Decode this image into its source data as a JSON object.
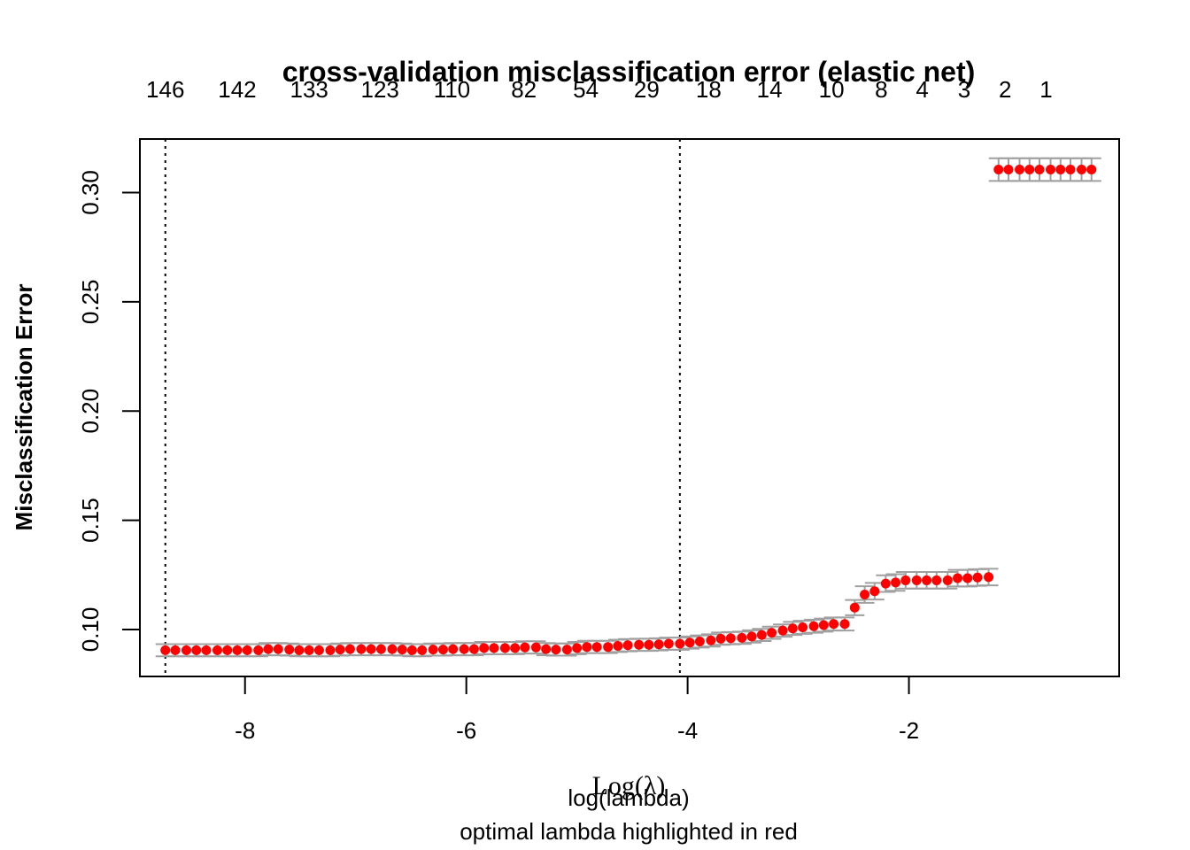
{
  "chart_data": {
    "type": "scatter",
    "title": "cross-validation misclassification error (elastic net)",
    "xlabel": "Log(λ)",
    "xlabel_overlay": "log(lambda)",
    "subtitle": "optimal lambda highlighted in red",
    "ylabel": "Misclassification Error",
    "xlim": [
      -8.95,
      -0.1
    ],
    "ylim": [
      0.0785,
      0.3245
    ],
    "x_ticks": [
      -8,
      -6,
      -4,
      -2
    ],
    "x_tick_labels": [
      "-8",
      "-6",
      "-4",
      "-2"
    ],
    "y_ticks": [
      0.1,
      0.15,
      0.2,
      0.25,
      0.3
    ],
    "y_tick_labels": [
      "0.10",
      "0.15",
      "0.20",
      "0.25",
      "0.30"
    ],
    "top_axis": {
      "positions": [
        -8.72,
        -8.07,
        -7.42,
        -6.78,
        -6.13,
        -5.48,
        -4.92,
        -4.37,
        -3.81,
        -3.26,
        -2.7,
        -2.25,
        -1.88,
        -1.5,
        -1.13,
        -0.76
      ],
      "labels": [
        "146",
        "142",
        "133",
        "123",
        "110",
        "82",
        "54",
        "29",
        "18",
        "14",
        "10",
        "8",
        "4",
        "3",
        "2",
        "1"
      ]
    },
    "vlines": [
      -8.72,
      -4.07
    ],
    "grid": false,
    "point_color": "#ff0000",
    "errorbar_color": "#a0a0a0",
    "series": [
      {
        "x": [
          -8.72,
          -8.63,
          -8.53,
          -8.44,
          -8.35,
          -8.25,
          -8.16,
          -8.07,
          -7.98,
          -7.88,
          -7.79,
          -7.7,
          -7.6,
          -7.51,
          -7.42,
          -7.33,
          -7.23,
          -7.14,
          -7.05,
          -6.95,
          -6.86,
          -6.77,
          -6.67,
          -6.58,
          -6.49,
          -6.4,
          -6.3,
          -6.21,
          -6.12,
          -6.02,
          -5.93,
          -5.84,
          -5.75,
          -5.65,
          -5.56,
          -5.47,
          -5.37,
          -5.28,
          -5.19,
          -5.09,
          -5.0,
          -4.91,
          -4.82,
          -4.72,
          -4.63,
          -4.54,
          -4.44,
          -4.35,
          -4.26,
          -4.17,
          -4.07,
          -3.98,
          -3.89,
          -3.79,
          -3.7,
          -3.61,
          -3.51,
          -3.42,
          -3.33,
          -3.24,
          -3.14,
          -3.05,
          -2.96,
          -2.86,
          -2.77,
          -2.68,
          -2.58,
          -2.49,
          -2.4,
          -2.31,
          -2.21,
          -2.12,
          -2.03,
          -1.93,
          -1.84,
          -1.75,
          -1.65,
          -1.56,
          -1.47,
          -1.38,
          -1.28,
          -1.19,
          -1.1,
          -1.0,
          -0.91,
          -0.82,
          -0.72,
          -0.63,
          -0.54,
          -0.44,
          -0.35
        ],
        "y": [
          0.0905,
          0.0905,
          0.0905,
          0.0905,
          0.0905,
          0.0905,
          0.0905,
          0.0905,
          0.0905,
          0.0905,
          0.091,
          0.091,
          0.0908,
          0.0905,
          0.0905,
          0.0905,
          0.0905,
          0.0908,
          0.091,
          0.091,
          0.091,
          0.091,
          0.091,
          0.0908,
          0.0905,
          0.0905,
          0.0908,
          0.0908,
          0.091,
          0.091,
          0.091,
          0.0915,
          0.0915,
          0.0915,
          0.0915,
          0.0918,
          0.0918,
          0.091,
          0.0908,
          0.0908,
          0.0915,
          0.092,
          0.092,
          0.092,
          0.0925,
          0.0928,
          0.093,
          0.093,
          0.0932,
          0.0935,
          0.0935,
          0.094,
          0.0945,
          0.095,
          0.0958,
          0.096,
          0.0962,
          0.0968,
          0.0975,
          0.0985,
          0.0995,
          0.1005,
          0.101,
          0.1015,
          0.102,
          0.1025,
          0.1025,
          0.11,
          0.116,
          0.1175,
          0.121,
          0.1215,
          0.1225,
          0.1225,
          0.1225,
          0.1225,
          0.1225,
          0.1235,
          0.1235,
          0.1238,
          0.124,
          0.3105,
          0.3105,
          0.3105,
          0.3105,
          0.3105,
          0.3105,
          0.3105,
          0.3105,
          0.3105,
          0.3105
        ],
        "se": [
          0.0028,
          0.0028,
          0.0028,
          0.0028,
          0.0028,
          0.0028,
          0.0028,
          0.0028,
          0.0028,
          0.0028,
          0.0028,
          0.0028,
          0.0028,
          0.0028,
          0.0028,
          0.0028,
          0.0028,
          0.0028,
          0.0028,
          0.0028,
          0.0028,
          0.0028,
          0.0028,
          0.0028,
          0.0028,
          0.0028,
          0.0028,
          0.0028,
          0.0028,
          0.0028,
          0.0028,
          0.0028,
          0.0028,
          0.0028,
          0.0028,
          0.0028,
          0.0028,
          0.0028,
          0.0028,
          0.0028,
          0.0028,
          0.0028,
          0.0028,
          0.0028,
          0.0028,
          0.0028,
          0.0028,
          0.0028,
          0.0028,
          0.0028,
          0.0028,
          0.0028,
          0.0028,
          0.0028,
          0.0028,
          0.0028,
          0.0028,
          0.0028,
          0.0028,
          0.0028,
          0.0028,
          0.003,
          0.003,
          0.003,
          0.003,
          0.003,
          0.003,
          0.0035,
          0.0038,
          0.0038,
          0.0038,
          0.0038,
          0.0038,
          0.0038,
          0.0038,
          0.0038,
          0.0038,
          0.0038,
          0.0038,
          0.0038,
          0.0038,
          0.0052,
          0.0052,
          0.0052,
          0.0052,
          0.0052,
          0.0052,
          0.0052,
          0.0052,
          0.0052,
          0.0052
        ]
      }
    ]
  }
}
